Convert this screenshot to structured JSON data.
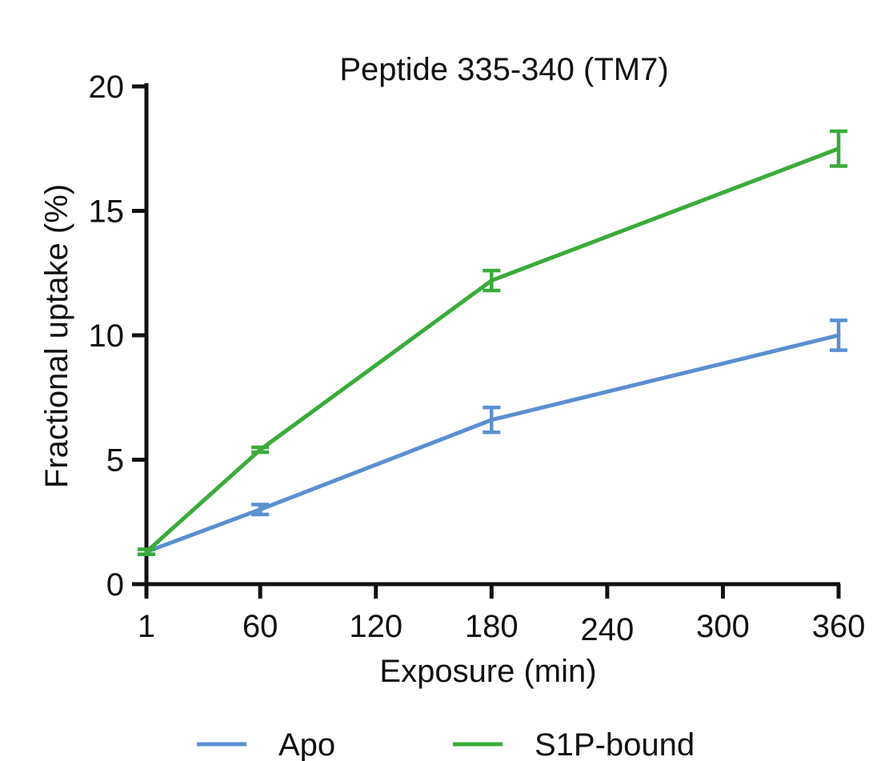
{
  "chart_data": {
    "type": "line",
    "title": "Peptide 335-340 (TM7)",
    "xlabel": "Exposure (min)",
    "ylabel": "Fractional uptake (%)",
    "x": [
      1,
      60,
      180,
      360
    ],
    "xticks": [
      1,
      60,
      120,
      180,
      240,
      300,
      360
    ],
    "xlim": [
      1,
      360
    ],
    "yticks": [
      0,
      5,
      10,
      15,
      20
    ],
    "ylim": [
      0,
      20
    ],
    "grid": false,
    "legend_position": "bottom",
    "series": [
      {
        "name": "Apo",
        "color": "#5b8fd1",
        "values": [
          1.3,
          3.0,
          6.6,
          10.0
        ],
        "errors": [
          0.1,
          0.2,
          0.5,
          0.6
        ]
      },
      {
        "name": "S1P-bound",
        "color": "#3aab3a",
        "values": [
          1.3,
          5.4,
          12.2,
          17.5
        ],
        "errors": [
          0.1,
          0.1,
          0.4,
          0.7
        ]
      }
    ]
  }
}
